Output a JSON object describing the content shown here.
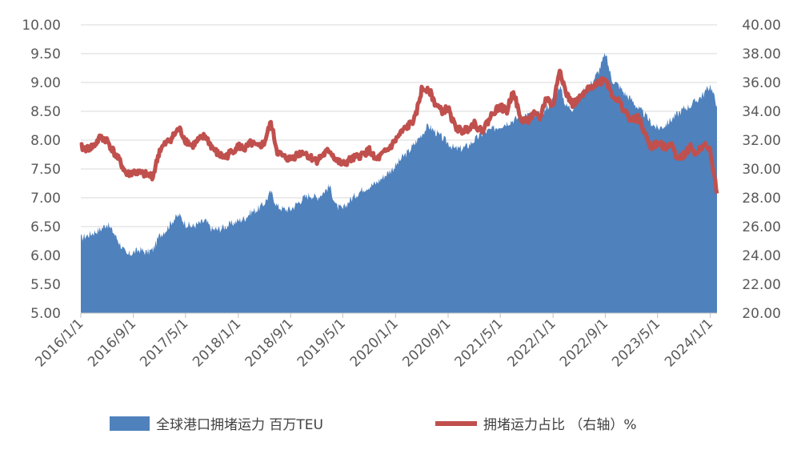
{
  "chart_data": {
    "type": "area+line (dual axis)",
    "x_type": "date",
    "x_range": [
      "2016-01-01",
      "2024-02-01"
    ],
    "x_tick_labels": [
      "2016/1/1",
      "2016/9/1",
      "2017/5/1",
      "2018/1/1",
      "2018/9/1",
      "2019/5/1",
      "2020/1/1",
      "2020/9/1",
      "2021/5/1",
      "2022/1/1",
      "2022/9/1",
      "2023/5/1",
      "2024/1/1"
    ],
    "x_tick_dates": [
      "2016-01-01",
      "2016-09-01",
      "2017-05-01",
      "2018-01-01",
      "2018-09-01",
      "2019-05-01",
      "2020-01-01",
      "2020-09-01",
      "2021-05-01",
      "2022-01-01",
      "2022-09-01",
      "2023-05-01",
      "2024-01-01"
    ],
    "y_left": {
      "range": [
        5.0,
        10.0
      ],
      "tick_labels": [
        "5.00",
        "5.50",
        "6.00",
        "6.50",
        "7.00",
        "7.50",
        "8.00",
        "8.50",
        "9.00",
        "9.50",
        "10.00"
      ]
    },
    "y_right": {
      "range": [
        20.0,
        40.0
      ],
      "tick_labels": [
        "20.00",
        "22.00",
        "24.00",
        "26.00",
        "28.00",
        "30.00",
        "32.00",
        "34.00",
        "36.00",
        "38.00",
        "40.00"
      ]
    },
    "grid": "horizontal",
    "legend_position": "bottom",
    "series": [
      {
        "name": "全球港口拥堵运力 百万TEU",
        "type": "area",
        "axis": "left",
        "color": "#4f81bd",
        "points": [
          [
            "2016-01-01",
            6.3
          ],
          [
            "2016-02-01",
            6.35
          ],
          [
            "2016-03-01",
            6.4
          ],
          [
            "2016-04-01",
            6.45
          ],
          [
            "2016-05-01",
            6.55
          ],
          [
            "2016-06-01",
            6.4
          ],
          [
            "2016-07-01",
            6.2
          ],
          [
            "2016-08-01",
            6.0
          ],
          [
            "2016-09-01",
            6.05
          ],
          [
            "2016-10-01",
            6.1
          ],
          [
            "2016-11-01",
            6.05
          ],
          [
            "2016-12-01",
            6.1
          ],
          [
            "2017-01-01",
            6.35
          ],
          [
            "2017-02-01",
            6.45
          ],
          [
            "2017-03-01",
            6.6
          ],
          [
            "2017-04-01",
            6.7
          ],
          [
            "2017-05-01",
            6.55
          ],
          [
            "2017-06-01",
            6.5
          ],
          [
            "2017-07-01",
            6.55
          ],
          [
            "2017-08-01",
            6.6
          ],
          [
            "2017-09-01",
            6.45
          ],
          [
            "2017-10-01",
            6.45
          ],
          [
            "2017-11-01",
            6.5
          ],
          [
            "2017-12-01",
            6.55
          ],
          [
            "2018-01-01",
            6.6
          ],
          [
            "2018-02-01",
            6.65
          ],
          [
            "2018-03-01",
            6.75
          ],
          [
            "2018-04-01",
            6.8
          ],
          [
            "2018-05-01",
            6.9
          ],
          [
            "2018-06-01",
            7.1
          ],
          [
            "2018-07-01",
            6.85
          ],
          [
            "2018-08-01",
            6.8
          ],
          [
            "2018-09-01",
            6.8
          ],
          [
            "2018-10-01",
            6.9
          ],
          [
            "2018-11-01",
            7.0
          ],
          [
            "2018-12-01",
            7.05
          ],
          [
            "2019-01-01",
            7.0
          ],
          [
            "2019-02-01",
            7.1
          ],
          [
            "2019-03-01",
            7.2
          ],
          [
            "2019-04-01",
            6.85
          ],
          [
            "2019-05-01",
            6.8
          ],
          [
            "2019-06-01",
            6.95
          ],
          [
            "2019-07-01",
            7.05
          ],
          [
            "2019-08-01",
            7.15
          ],
          [
            "2019-09-01",
            7.2
          ],
          [
            "2019-10-01",
            7.25
          ],
          [
            "2019-11-01",
            7.35
          ],
          [
            "2019-12-01",
            7.45
          ],
          [
            "2020-01-01",
            7.55
          ],
          [
            "2020-02-01",
            7.7
          ],
          [
            "2020-03-01",
            7.8
          ],
          [
            "2020-04-01",
            7.95
          ],
          [
            "2020-05-01",
            8.1
          ],
          [
            "2020-06-01",
            8.25
          ],
          [
            "2020-07-01",
            8.15
          ],
          [
            "2020-08-01",
            8.05
          ],
          [
            "2020-09-01",
            7.95
          ],
          [
            "2020-10-01",
            7.85
          ],
          [
            "2020-11-01",
            7.85
          ],
          [
            "2020-12-01",
            7.9
          ],
          [
            "2021-01-01",
            8.0
          ],
          [
            "2021-02-01",
            8.1
          ],
          [
            "2021-03-01",
            8.15
          ],
          [
            "2021-04-01",
            8.2
          ],
          [
            "2021-05-01",
            8.25
          ],
          [
            "2021-06-01",
            8.3
          ],
          [
            "2021-07-01",
            8.35
          ],
          [
            "2021-08-01",
            8.4
          ],
          [
            "2021-09-01",
            8.45
          ],
          [
            "2021-10-01",
            8.4
          ],
          [
            "2021-11-01",
            8.45
          ],
          [
            "2021-12-01",
            8.55
          ],
          [
            "2022-01-01",
            8.7
          ],
          [
            "2022-02-01",
            8.95
          ],
          [
            "2022-03-01",
            8.6
          ],
          [
            "2022-04-01",
            8.55
          ],
          [
            "2022-05-01",
            8.75
          ],
          [
            "2022-06-01",
            8.9
          ],
          [
            "2022-07-01",
            9.0
          ],
          [
            "2022-08-01",
            9.2
          ],
          [
            "2022-09-01",
            9.5
          ],
          [
            "2022-10-01",
            9.05
          ],
          [
            "2022-11-01",
            8.95
          ],
          [
            "2022-12-01",
            8.8
          ],
          [
            "2023-01-01",
            8.7
          ],
          [
            "2023-02-01",
            8.55
          ],
          [
            "2023-03-01",
            8.45
          ],
          [
            "2023-04-01",
            8.3
          ],
          [
            "2023-05-01",
            8.2
          ],
          [
            "2023-06-01",
            8.25
          ],
          [
            "2023-07-01",
            8.35
          ],
          [
            "2023-08-01",
            8.45
          ],
          [
            "2023-09-01",
            8.55
          ],
          [
            "2023-10-01",
            8.6
          ],
          [
            "2023-11-01",
            8.7
          ],
          [
            "2023-12-01",
            8.8
          ],
          [
            "2024-01-01",
            8.95
          ],
          [
            "2024-02-01",
            8.6
          ]
        ]
      },
      {
        "name": "拥堵运力占比 （右轴）%",
        "type": "line",
        "axis": "right",
        "color": "#c0504d",
        "points": [
          [
            "2016-01-01",
            31.5
          ],
          [
            "2016-02-01",
            31.4
          ],
          [
            "2016-03-01",
            31.6
          ],
          [
            "2016-04-01",
            32.2
          ],
          [
            "2016-05-01",
            32.0
          ],
          [
            "2016-06-01",
            31.2
          ],
          [
            "2016-07-01",
            30.5
          ],
          [
            "2016-08-01",
            29.6
          ],
          [
            "2016-09-01",
            29.8
          ],
          [
            "2016-10-01",
            29.7
          ],
          [
            "2016-11-01",
            29.6
          ],
          [
            "2016-12-01",
            29.5
          ],
          [
            "2017-01-01",
            31.3
          ],
          [
            "2017-02-01",
            31.8
          ],
          [
            "2017-03-01",
            32.2
          ],
          [
            "2017-04-01",
            32.8
          ],
          [
            "2017-05-01",
            32.0
          ],
          [
            "2017-06-01",
            31.6
          ],
          [
            "2017-07-01",
            32.0
          ],
          [
            "2017-08-01",
            32.3
          ],
          [
            "2017-09-01",
            31.5
          ],
          [
            "2017-10-01",
            31.0
          ],
          [
            "2017-11-01",
            30.8
          ],
          [
            "2017-12-01",
            31.2
          ],
          [
            "2018-01-01",
            31.6
          ],
          [
            "2018-02-01",
            31.4
          ],
          [
            "2018-03-01",
            31.8
          ],
          [
            "2018-04-01",
            31.5
          ],
          [
            "2018-05-01",
            31.8
          ],
          [
            "2018-06-01",
            33.2
          ],
          [
            "2018-07-01",
            31.2
          ],
          [
            "2018-08-01",
            30.8
          ],
          [
            "2018-09-01",
            30.7
          ],
          [
            "2018-10-01",
            31.0
          ],
          [
            "2018-11-01",
            31.2
          ],
          [
            "2018-12-01",
            30.8
          ],
          [
            "2019-01-01",
            30.6
          ],
          [
            "2019-02-01",
            31.0
          ],
          [
            "2019-03-01",
            31.3
          ],
          [
            "2019-04-01",
            30.6
          ],
          [
            "2019-05-01",
            30.3
          ],
          [
            "2019-06-01",
            30.6
          ],
          [
            "2019-07-01",
            30.8
          ],
          [
            "2019-08-01",
            31.0
          ],
          [
            "2019-09-01",
            31.3
          ],
          [
            "2019-10-01",
            30.6
          ],
          [
            "2019-11-01",
            31.0
          ],
          [
            "2019-12-01",
            31.4
          ],
          [
            "2020-01-01",
            32.0
          ],
          [
            "2020-02-01",
            32.6
          ],
          [
            "2020-03-01",
            33.0
          ],
          [
            "2020-04-01",
            33.5
          ],
          [
            "2020-05-01",
            35.5
          ],
          [
            "2020-06-01",
            35.6
          ],
          [
            "2020-07-01",
            34.6
          ],
          [
            "2020-08-01",
            34.0
          ],
          [
            "2020-09-01",
            34.2
          ],
          [
            "2020-10-01",
            33.0
          ],
          [
            "2020-11-01",
            32.6
          ],
          [
            "2020-12-01",
            32.8
          ],
          [
            "2021-01-01",
            33.2
          ],
          [
            "2021-02-01",
            32.6
          ],
          [
            "2021-03-01",
            33.2
          ],
          [
            "2021-04-01",
            34.0
          ],
          [
            "2021-05-01",
            34.3
          ],
          [
            "2021-06-01",
            34.0
          ],
          [
            "2021-07-01",
            35.5
          ],
          [
            "2021-08-01",
            33.5
          ],
          [
            "2021-09-01",
            33.3
          ],
          [
            "2021-10-01",
            33.8
          ],
          [
            "2021-11-01",
            33.5
          ],
          [
            "2021-12-01",
            35.0
          ],
          [
            "2022-01-01",
            34.3
          ],
          [
            "2022-02-01",
            37.0
          ],
          [
            "2022-03-01",
            35.3
          ],
          [
            "2022-04-01",
            34.5
          ],
          [
            "2022-05-01",
            34.8
          ],
          [
            "2022-06-01",
            35.3
          ],
          [
            "2022-07-01",
            35.8
          ],
          [
            "2022-08-01",
            36.0
          ],
          [
            "2022-09-01",
            36.3
          ],
          [
            "2022-10-01",
            35.2
          ],
          [
            "2022-11-01",
            34.7
          ],
          [
            "2022-12-01",
            34.0
          ],
          [
            "2023-01-01",
            33.3
          ],
          [
            "2023-02-01",
            33.6
          ],
          [
            "2023-03-01",
            32.5
          ],
          [
            "2023-04-01",
            31.5
          ],
          [
            "2023-05-01",
            31.8
          ],
          [
            "2023-06-01",
            31.5
          ],
          [
            "2023-07-01",
            31.8
          ],
          [
            "2023-08-01",
            30.8
          ],
          [
            "2023-09-01",
            31.0
          ],
          [
            "2023-10-01",
            31.5
          ],
          [
            "2023-11-01",
            31.0
          ],
          [
            "2023-12-01",
            31.8
          ],
          [
            "2024-01-01",
            31.2
          ],
          [
            "2024-02-01",
            28.3
          ]
        ]
      }
    ]
  }
}
